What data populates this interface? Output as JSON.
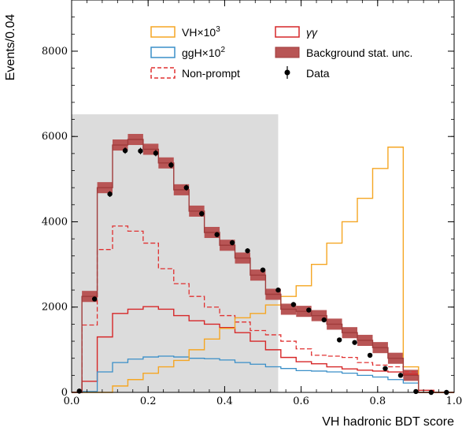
{
  "chart_data": {
    "type": "histogram",
    "xlabel": "VH hadronic BDT score",
    "ylabel": "Events/0.04",
    "xlim": [
      0.0,
      1.0
    ],
    "ylim": [
      0,
      9200
    ],
    "bin_width": 0.04,
    "bin_edges": [
      0.0,
      0.027,
      0.067,
      0.107,
      0.147,
      0.187,
      0.227,
      0.267,
      0.307,
      0.347,
      0.387,
      0.427,
      0.467,
      0.507,
      0.547,
      0.587,
      0.627,
      0.667,
      0.707,
      0.747,
      0.787,
      0.827,
      0.867,
      0.907,
      0.947,
      1.0
    ],
    "x_ticks": [
      0.0,
      0.2,
      0.4,
      0.6,
      0.8,
      1.0
    ],
    "x_tick_labels": [
      "0.0",
      "0.2",
      "0.4",
      "0.6",
      "0.8",
      "1.0"
    ],
    "y_ticks": [
      0,
      2000,
      4000,
      6000,
      8000
    ],
    "y_tick_labels": [
      "0",
      "2000",
      "4000",
      "6000",
      "8000"
    ],
    "shaded_region": {
      "x_range": [
        0.0,
        0.54
      ],
      "y_max": 6520,
      "color": "#dcdcdc"
    },
    "legend_position": "top",
    "legend_labels": {
      "vh": "VH×10",
      "vh_exp": "3",
      "ggh": "ggH×10",
      "ggh_exp": "2",
      "nonprompt": "Non-prompt",
      "gg": "γγ",
      "bkg": "Background stat. unc.",
      "data": "Data"
    },
    "colors": {
      "vh": "#f5a623",
      "ggh": "#3a8fc8",
      "nonprompt": "#e03030",
      "gg": "#d62728",
      "bkg": "#a03c3c",
      "bkg_band": "#b85555",
      "data": "#000000",
      "shade": "#dcdcdc"
    },
    "series": [
      {
        "key": "total",
        "values": [
          0,
          2250,
          4800,
          5800,
          5930,
          5700,
          5380,
          4750,
          4250,
          3750,
          3450,
          3150,
          2750,
          2300,
          1950,
          1900,
          1800,
          1600,
          1400,
          1220,
          1050,
          800,
          400,
          0,
          0
        ]
      },
      {
        "key": "gg",
        "values": [
          0,
          260,
          1300,
          1850,
          1950,
          2010,
          1950,
          1800,
          1680,
          1600,
          1520,
          1400,
          1200,
          1000,
          820,
          720,
          670,
          600,
          550,
          520,
          500,
          480,
          430,
          50,
          0
        ]
      },
      {
        "key": "nonprompt",
        "values": [
          0,
          1580,
          3350,
          3900,
          3780,
          3500,
          2900,
          2550,
          2250,
          2000,
          1800,
          1650,
          1450,
          1350,
          1200,
          1020,
          870,
          850,
          820,
          700,
          640,
          600,
          480,
          0,
          0
        ]
      },
      {
        "key": "ggh",
        "values": [
          0,
          20,
          480,
          700,
          780,
          830,
          850,
          830,
          800,
          790,
          760,
          700,
          660,
          600,
          560,
          510,
          500,
          480,
          450,
          400,
          360,
          300,
          220,
          0,
          0
        ]
      },
      {
        "key": "vh",
        "values": [
          0,
          0,
          0,
          150,
          300,
          450,
          600,
          750,
          1000,
          1250,
          1500,
          1750,
          1850,
          2050,
          2250,
          2500,
          3000,
          3500,
          4000,
          4550,
          5250,
          5750,
          600,
          0,
          0
        ]
      }
    ],
    "data_points": {
      "x": [
        0.02,
        0.06,
        0.1,
        0.14,
        0.18,
        0.22,
        0.26,
        0.3,
        0.34,
        0.38,
        0.42,
        0.46,
        0.5,
        0.54,
        0.58,
        0.62,
        0.66,
        0.7,
        0.74,
        0.78,
        0.82,
        0.86,
        0.9,
        0.94,
        0.98
      ],
      "y": [
        30,
        2190,
        4650,
        5670,
        5660,
        5610,
        5330,
        4800,
        4190,
        3700,
        3510,
        3320,
        2870,
        2400,
        2060,
        1930,
        1700,
        1230,
        1170,
        870,
        560,
        400,
        20,
        0,
        0
      ]
    }
  }
}
